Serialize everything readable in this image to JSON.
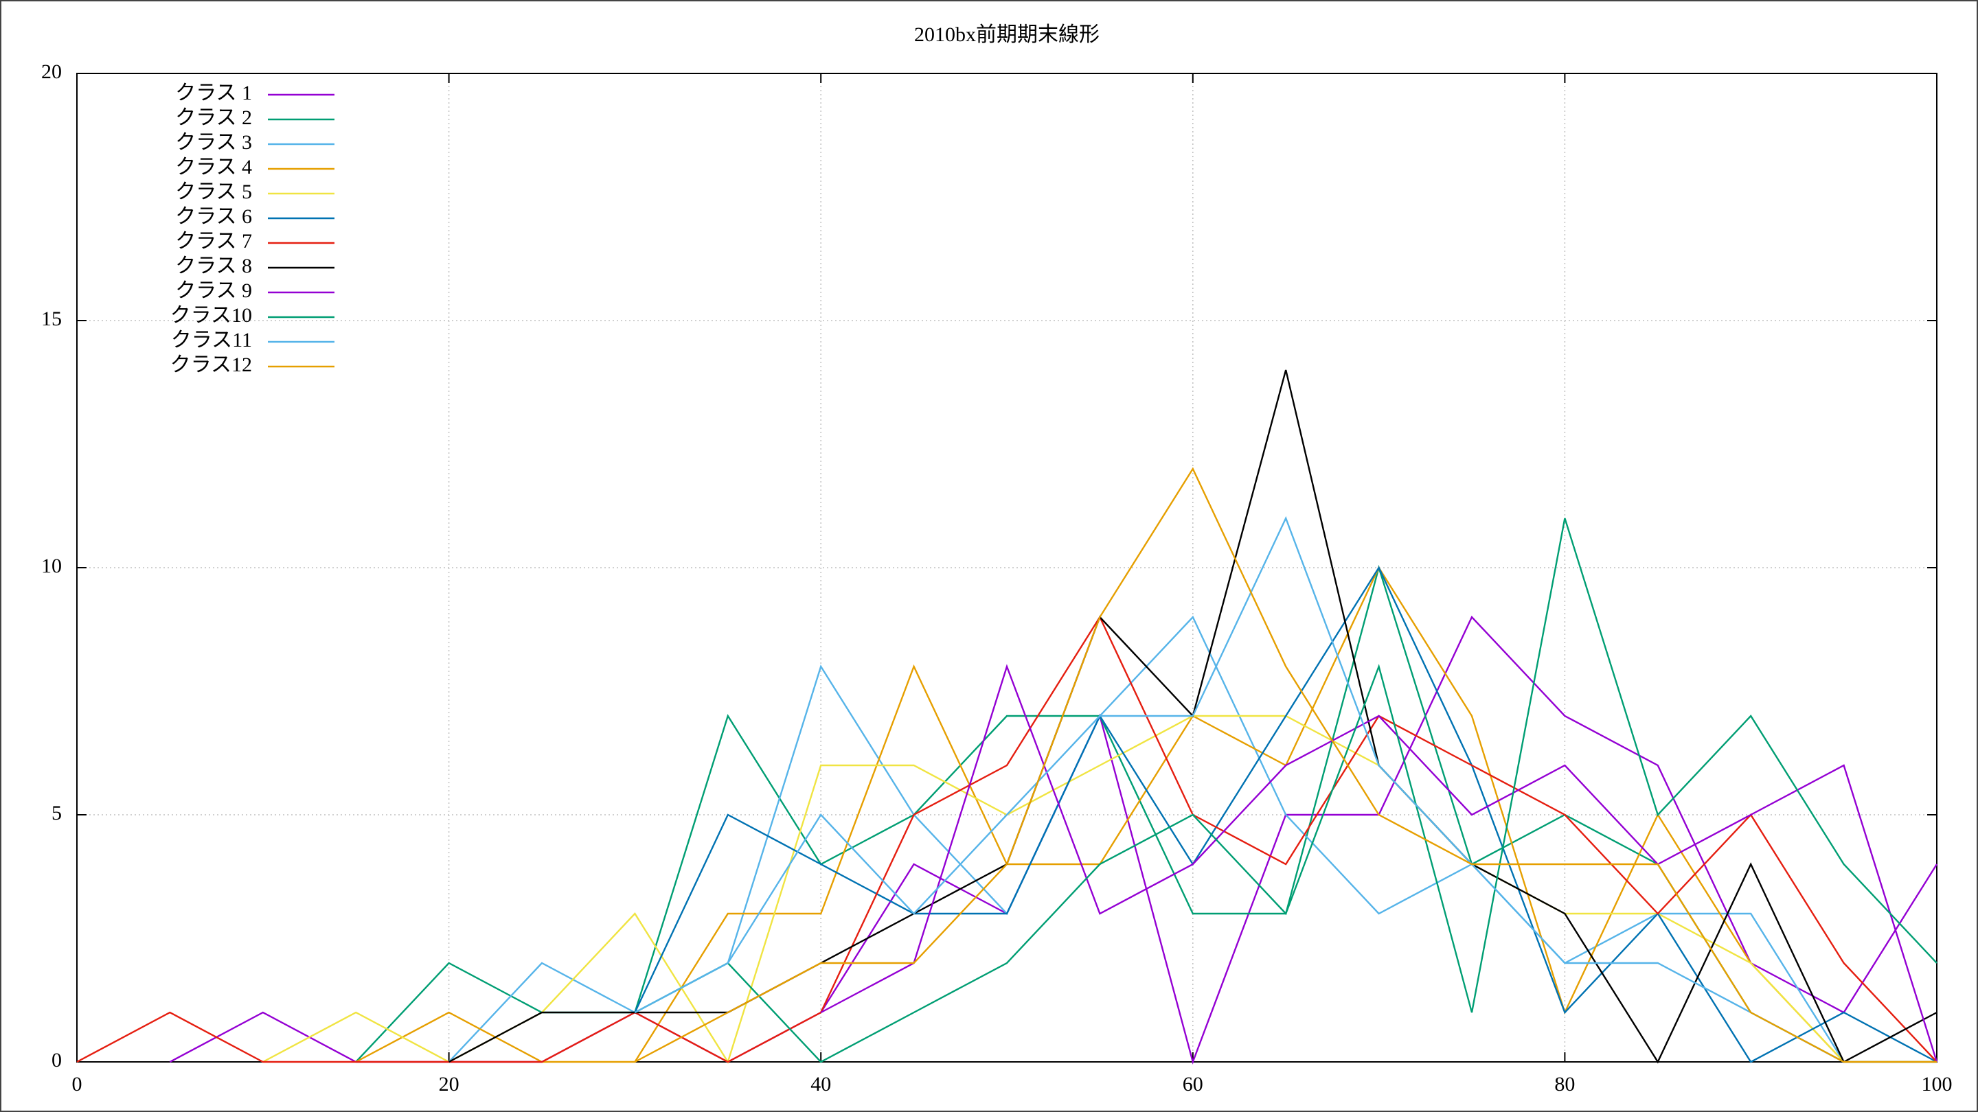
{
  "chart_data": {
    "type": "line",
    "title": "2010bx前期期末線形",
    "x": [
      0,
      5,
      10,
      15,
      20,
      25,
      30,
      35,
      40,
      45,
      50,
      55,
      60,
      65,
      70,
      75,
      80,
      85,
      90,
      95,
      100
    ],
    "xlim": [
      0,
      100
    ],
    "xticks": [
      0,
      20,
      40,
      60,
      80,
      100
    ],
    "ylim": [
      0,
      20
    ],
    "yticks": [
      0,
      5,
      10,
      15,
      20
    ],
    "grid": true,
    "legend": "upper-left",
    "series": [
      {
        "name": "クラス 1",
        "color": "#9400d3",
        "values": [
          null,
          0,
          1,
          0,
          0,
          0,
          1,
          0,
          1,
          4,
          3,
          7,
          0,
          5,
          5,
          9,
          7,
          6,
          2,
          1,
          4
        ]
      },
      {
        "name": "クラス 2",
        "color": "#009e73",
        "values": [
          null,
          null,
          null,
          0,
          2,
          1,
          1,
          7,
          4,
          5,
          7,
          7,
          3,
          3,
          10,
          4,
          5,
          4,
          1,
          0,
          0
        ]
      },
      {
        "name": "クラス 3",
        "color": "#56b4e9",
        "values": [
          null,
          null,
          null,
          null,
          0,
          2,
          1,
          2,
          8,
          5,
          3,
          7,
          9,
          5,
          3,
          4,
          2,
          3,
          3,
          0,
          0
        ]
      },
      {
        "name": "クラス 4",
        "color": "#e69f00",
        "values": [
          null,
          null,
          null,
          0,
          1,
          0,
          0,
          3,
          3,
          8,
          4,
          4,
          7,
          6,
          10,
          7,
          1,
          5,
          2,
          0,
          0
        ]
      },
      {
        "name": "クラス 5",
        "color": "#f0e442",
        "values": [
          null,
          null,
          0,
          1,
          0,
          1,
          3,
          0,
          6,
          6,
          5,
          6,
          7,
          7,
          6,
          4,
          3,
          3,
          2,
          0,
          null
        ]
      },
      {
        "name": "クラス 6",
        "color": "#0072b2",
        "values": [
          null,
          null,
          null,
          null,
          null,
          null,
          1,
          5,
          4,
          3,
          3,
          7,
          4,
          7,
          10,
          6,
          1,
          3,
          0,
          1,
          0
        ]
      },
      {
        "name": "クラス 7",
        "color": "#e51e10",
        "values": [
          0,
          1,
          0,
          0,
          0,
          0,
          1,
          0,
          1,
          5,
          6,
          9,
          5,
          4,
          7,
          6,
          5,
          3,
          5,
          2,
          0
        ]
      },
      {
        "name": "クラス 8",
        "color": "#000000",
        "values": [
          null,
          null,
          null,
          null,
          0,
          1,
          1,
          1,
          2,
          3,
          4,
          9,
          7,
          14,
          6,
          4,
          3,
          0,
          4,
          0,
          1
        ]
      },
      {
        "name": "クラス 9",
        "color": "#9400d3",
        "values": [
          null,
          null,
          null,
          null,
          null,
          null,
          null,
          null,
          1,
          2,
          8,
          3,
          4,
          6,
          7,
          5,
          6,
          4,
          5,
          6,
          0
        ]
      },
      {
        "name": "クラス10",
        "color": "#009e73",
        "values": [
          null,
          null,
          null,
          null,
          null,
          null,
          1,
          2,
          0,
          1,
          2,
          4,
          5,
          3,
          8,
          1,
          11,
          5,
          7,
          4,
          2
        ]
      },
      {
        "name": "クラス11",
        "color": "#56b4e9",
        "values": [
          null,
          null,
          null,
          null,
          null,
          null,
          1,
          2,
          5,
          3,
          5,
          7,
          7,
          11,
          6,
          4,
          2,
          2,
          1,
          0,
          0
        ]
      },
      {
        "name": "クラス12",
        "color": "#e69f00",
        "values": [
          null,
          null,
          null,
          null,
          null,
          null,
          0,
          1,
          2,
          2,
          4,
          9,
          12,
          8,
          5,
          4,
          4,
          4,
          1,
          0,
          0
        ]
      }
    ]
  }
}
